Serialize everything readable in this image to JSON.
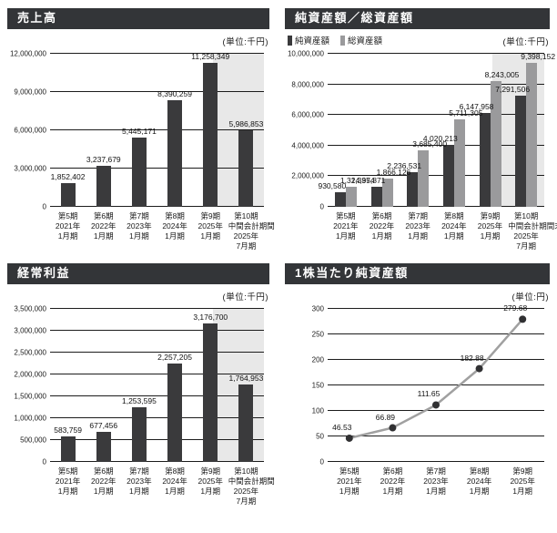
{
  "chart_data": [
    {
      "name": "sales",
      "type": "bar",
      "title": "売上高",
      "unit_label": "(単位:千円)",
      "xlabel": "",
      "ylabel": "",
      "ylim": [
        0,
        12000000
      ],
      "y_step": 3000000,
      "grid": true,
      "value_decimals": 0,
      "highlight_last_period": true,
      "highlight_color": "#e8e8e8",
      "categories": [
        [
          "第5期",
          "2021年",
          "1月期"
        ],
        [
          "第6期",
          "2022年",
          "1月期"
        ],
        [
          "第7期",
          "2023年",
          "1月期"
        ],
        [
          "第8期",
          "2024年",
          "1月期"
        ],
        [
          "第9期",
          "2025年",
          "1月期"
        ],
        [
          "第10期",
          "中間会計期間",
          "2025年",
          "7月期"
        ]
      ],
      "series": [
        {
          "name": "売上高",
          "color": "#3a3a3c",
          "values": [
            1852402,
            3237679,
            5445171,
            8390259,
            11258349,
            5986853
          ]
        }
      ]
    },
    {
      "name": "net-assets-total-assets",
      "type": "bar",
      "title": "純資産額／総資産額",
      "unit_label": "(単位:千円)",
      "xlabel": "",
      "ylabel": "",
      "ylim": [
        0,
        10000000
      ],
      "y_step": 2000000,
      "grid": true,
      "value_decimals": 0,
      "highlight_last_period": true,
      "highlight_color": "#e8e8e8",
      "legend": [
        {
          "label": "純資産額",
          "color": "#3a3a3c"
        },
        {
          "label": "総資産額",
          "color": "#9a9a9c"
        }
      ],
      "legend_position": "top-left",
      "categories": [
        [
          "第5期",
          "2021年",
          "1月期"
        ],
        [
          "第6期",
          "2022年",
          "1月期"
        ],
        [
          "第7期",
          "2023年",
          "1月期"
        ],
        [
          "第8期",
          "2024年",
          "1月期"
        ],
        [
          "第9期",
          "2025年",
          "1月期"
        ],
        [
          "第10期",
          "中間会計期間末",
          "2025年",
          "7月期"
        ]
      ],
      "series": [
        {
          "name": "純資産額",
          "color": "#3a3a3c",
          "values": [
            930580,
            1337871,
            2236531,
            4020213,
            6147958,
            7291506
          ]
        },
        {
          "name": "総資産額",
          "color": "#9a9a9c",
          "values": [
            1324954,
            1866126,
            3685400,
            5711305,
            8243005,
            9398152
          ]
        }
      ]
    },
    {
      "name": "ordinary-income",
      "type": "bar",
      "title": "経常利益",
      "unit_label": "(単位:千円)",
      "xlabel": "",
      "ylabel": "",
      "ylim": [
        0,
        3500000
      ],
      "y_step": 500000,
      "grid": true,
      "value_decimals": 0,
      "highlight_last_period": true,
      "highlight_color": "#e8e8e8",
      "categories": [
        [
          "第5期",
          "2021年",
          "1月期"
        ],
        [
          "第6期",
          "2022年",
          "1月期"
        ],
        [
          "第7期",
          "2023年",
          "1月期"
        ],
        [
          "第8期",
          "2024年",
          "1月期"
        ],
        [
          "第9期",
          "2025年",
          "1月期"
        ],
        [
          "第10期",
          "中間会計期間",
          "2025年",
          "7月期"
        ]
      ],
      "series": [
        {
          "name": "経常利益",
          "color": "#3a3a3c",
          "values": [
            583759,
            677456,
            1253595,
            2257205,
            3176700,
            1764953
          ]
        }
      ]
    },
    {
      "name": "net-assets-per-share",
      "type": "line",
      "title": "1株当たり純資産額",
      "unit_label": "(単位:円)",
      "xlabel": "",
      "ylabel": "",
      "ylim": [
        0,
        300
      ],
      "y_step": 50,
      "grid": true,
      "value_decimals": 2,
      "highlight_last_period": false,
      "categories": [
        [
          "第5期",
          "2021年",
          "1月期"
        ],
        [
          "第6期",
          "2022年",
          "1月期"
        ],
        [
          "第7期",
          "2023年",
          "1月期"
        ],
        [
          "第8期",
          "2024年",
          "1月期"
        ],
        [
          "第9期",
          "2025年",
          "1月期"
        ]
      ],
      "series": [
        {
          "name": "1株当たり純資産額",
          "color": "#a0a0a0",
          "marker_color": "#303032",
          "values": [
            46.53,
            66.89,
            111.65,
            182.88,
            279.68
          ]
        }
      ]
    }
  ]
}
